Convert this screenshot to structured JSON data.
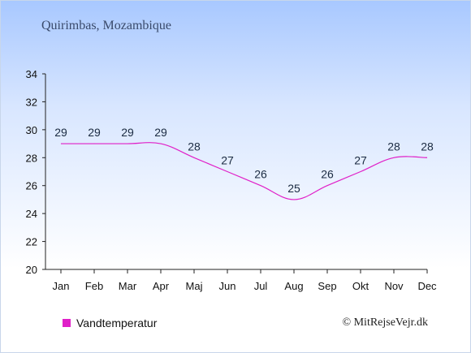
{
  "page": {
    "location_title": "Quirimbas, Mozambique",
    "credit": "© MitRejseVejr.dk"
  },
  "chart_data": {
    "type": "line",
    "title": "Quirimbas, Mozambique",
    "xlabel": "",
    "ylabel": "",
    "categories": [
      "Jan",
      "Feb",
      "Mar",
      "Apr",
      "Maj",
      "Jun",
      "Jul",
      "Aug",
      "Sep",
      "Okt",
      "Nov",
      "Dec"
    ],
    "series": [
      {
        "name": "Vandtemperatur",
        "values": [
          29,
          29,
          29,
          29,
          28,
          27,
          26,
          25,
          26,
          27,
          28,
          28
        ],
        "color": "#e020c8"
      }
    ],
    "ylim": [
      20,
      34
    ],
    "yticks": [
      "20",
      "22",
      "24",
      "26",
      "28",
      "30",
      "32",
      "34"
    ],
    "grid": false,
    "data_labels": true,
    "legend_position": "bottom-left"
  }
}
